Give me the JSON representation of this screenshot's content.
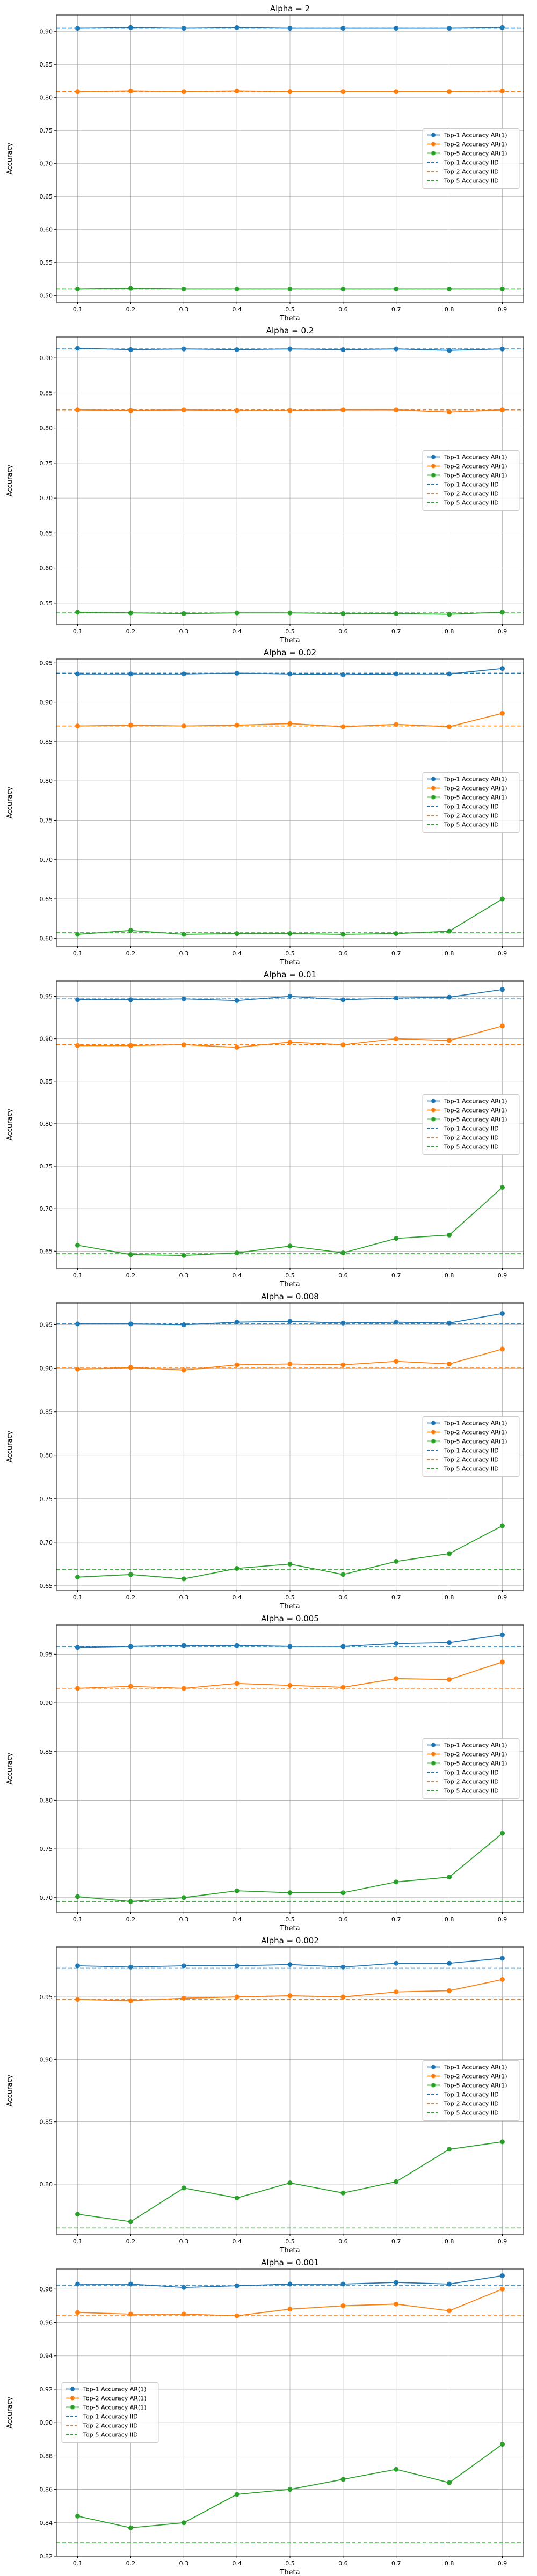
{
  "chart_data": [
    {
      "type": "line",
      "title": "Alpha = 2",
      "xlabel": "Theta",
      "ylabel": "Accuracy",
      "x": [
        0.1,
        0.2,
        0.3,
        0.4,
        0.5,
        0.6,
        0.7,
        0.8,
        0.9
      ],
      "xticks": [
        "0.1",
        "0.2",
        "0.3",
        "0.4",
        "0.5",
        "0.6",
        "0.7",
        "0.8",
        "0.9"
      ],
      "ylim": [
        0.49,
        0.925
      ],
      "yticks": [
        0.5,
        0.55,
        0.6,
        0.65,
        0.7,
        0.75,
        0.8,
        0.85,
        0.9
      ],
      "yticklabels": [
        "0.50",
        "0.55",
        "0.60",
        "0.65",
        "0.70",
        "0.75",
        "0.80",
        "0.85",
        "0.90"
      ],
      "legend_loc": "center right",
      "grid": true,
      "series": [
        {
          "name": "Top-1 Accuracy AR(1)",
          "color": "#1f77b4",
          "style": "solid-marker",
          "values": [
            0.905,
            0.906,
            0.905,
            0.906,
            0.905,
            0.905,
            0.905,
            0.905,
            0.906
          ]
        },
        {
          "name": "Top-2 Accuracy AR(1)",
          "color": "#ff7f0e",
          "style": "solid-marker",
          "values": [
            0.809,
            0.81,
            0.809,
            0.81,
            0.809,
            0.809,
            0.809,
            0.809,
            0.81
          ]
        },
        {
          "name": "Top-5 Accuracy AR(1)",
          "color": "#2ca02c",
          "style": "solid-marker",
          "values": [
            0.51,
            0.511,
            0.51,
            0.51,
            0.51,
            0.51,
            0.51,
            0.51,
            0.51
          ]
        },
        {
          "name": "Top-1 Accuracy IID",
          "color": "#1f77b4",
          "style": "dashed",
          "value": 0.905
        },
        {
          "name": "Top-2 Accuracy IID",
          "color": "#ff7f0e",
          "style": "dashed",
          "value": 0.809
        },
        {
          "name": "Top-5 Accuracy IID",
          "color": "#2ca02c",
          "style": "dashed",
          "value": 0.51
        }
      ]
    },
    {
      "type": "line",
      "title": "Alpha = 0.2",
      "xlabel": "Theta",
      "ylabel": "Accuracy",
      "x": [
        0.1,
        0.2,
        0.3,
        0.4,
        0.5,
        0.6,
        0.7,
        0.8,
        0.9
      ],
      "xticks": [
        "0.1",
        "0.2",
        "0.3",
        "0.4",
        "0.5",
        "0.6",
        "0.7",
        "0.8",
        "0.9"
      ],
      "ylim": [
        0.52,
        0.93
      ],
      "yticks": [
        0.55,
        0.6,
        0.65,
        0.7,
        0.75,
        0.8,
        0.85,
        0.9
      ],
      "yticklabels": [
        "0.55",
        "0.60",
        "0.65",
        "0.70",
        "0.75",
        "0.80",
        "0.85",
        "0.90"
      ],
      "legend_loc": "center right",
      "grid": true,
      "series": [
        {
          "name": "Top-1 Accuracy AR(1)",
          "color": "#1f77b4",
          "style": "solid-marker",
          "values": [
            0.914,
            0.912,
            0.913,
            0.912,
            0.913,
            0.912,
            0.913,
            0.911,
            0.913
          ]
        },
        {
          "name": "Top-2 Accuracy AR(1)",
          "color": "#ff7f0e",
          "style": "solid-marker",
          "values": [
            0.826,
            0.825,
            0.826,
            0.825,
            0.825,
            0.826,
            0.826,
            0.823,
            0.826
          ]
        },
        {
          "name": "Top-5 Accuracy AR(1)",
          "color": "#2ca02c",
          "style": "solid-marker",
          "values": [
            0.537,
            0.536,
            0.535,
            0.536,
            0.536,
            0.535,
            0.535,
            0.534,
            0.537
          ]
        },
        {
          "name": "Top-1 Accuracy IID",
          "color": "#1f77b4",
          "style": "dashed",
          "value": 0.913
        },
        {
          "name": "Top-2 Accuracy IID",
          "color": "#ff7f0e",
          "style": "dashed",
          "value": 0.826
        },
        {
          "name": "Top-5 Accuracy IID",
          "color": "#2ca02c",
          "style": "dashed",
          "value": 0.536
        }
      ]
    },
    {
      "type": "line",
      "title": "Alpha = 0.02",
      "xlabel": "Theta",
      "ylabel": "Accuracy",
      "x": [
        0.1,
        0.2,
        0.3,
        0.4,
        0.5,
        0.6,
        0.7,
        0.8,
        0.9
      ],
      "xticks": [
        "0.1",
        "0.2",
        "0.3",
        "0.4",
        "0.5",
        "0.6",
        "0.7",
        "0.8",
        "0.9"
      ],
      "ylim": [
        0.59,
        0.955
      ],
      "yticks": [
        0.6,
        0.65,
        0.7,
        0.75,
        0.8,
        0.85,
        0.9,
        0.95
      ],
      "yticklabels": [
        "0.60",
        "0.65",
        "0.70",
        "0.75",
        "0.80",
        "0.85",
        "0.90",
        "0.95"
      ],
      "legend_loc": "center right",
      "grid": true,
      "series": [
        {
          "name": "Top-1 Accuracy AR(1)",
          "color": "#1f77b4",
          "style": "solid-marker",
          "values": [
            0.936,
            0.936,
            0.936,
            0.937,
            0.936,
            0.935,
            0.936,
            0.936,
            0.943
          ]
        },
        {
          "name": "Top-2 Accuracy AR(1)",
          "color": "#ff7f0e",
          "style": "solid-marker",
          "values": [
            0.87,
            0.871,
            0.87,
            0.871,
            0.873,
            0.869,
            0.872,
            0.869,
            0.886
          ]
        },
        {
          "name": "Top-5 Accuracy AR(1)",
          "color": "#2ca02c",
          "style": "solid-marker",
          "values": [
            0.605,
            0.61,
            0.605,
            0.606,
            0.606,
            0.605,
            0.606,
            0.609,
            0.65
          ]
        },
        {
          "name": "Top-1 Accuracy IID",
          "color": "#1f77b4",
          "style": "dashed",
          "value": 0.937
        },
        {
          "name": "Top-2 Accuracy IID",
          "color": "#ff7f0e",
          "style": "dashed",
          "value": 0.87
        },
        {
          "name": "Top-5 Accuracy IID",
          "color": "#2ca02c",
          "style": "dashed",
          "value": 0.607
        }
      ]
    },
    {
      "type": "line",
      "title": "Alpha = 0.01",
      "xlabel": "Theta",
      "ylabel": "Accuracy",
      "x": [
        0.1,
        0.2,
        0.3,
        0.4,
        0.5,
        0.6,
        0.7,
        0.8,
        0.9
      ],
      "xticks": [
        "0.1",
        "0.2",
        "0.3",
        "0.4",
        "0.5",
        "0.6",
        "0.7",
        "0.8",
        "0.9"
      ],
      "ylim": [
        0.63,
        0.968
      ],
      "yticks": [
        0.65,
        0.7,
        0.75,
        0.8,
        0.85,
        0.9,
        0.95
      ],
      "yticklabels": [
        "0.65",
        "0.70",
        "0.75",
        "0.80",
        "0.85",
        "0.90",
        "0.95"
      ],
      "legend_loc": "center right",
      "grid": true,
      "series": [
        {
          "name": "Top-1 Accuracy AR(1)",
          "color": "#1f77b4",
          "style": "solid-marker",
          "values": [
            0.946,
            0.946,
            0.947,
            0.945,
            0.95,
            0.946,
            0.948,
            0.949,
            0.958
          ]
        },
        {
          "name": "Top-2 Accuracy AR(1)",
          "color": "#ff7f0e",
          "style": "solid-marker",
          "values": [
            0.892,
            0.892,
            0.893,
            0.89,
            0.896,
            0.893,
            0.9,
            0.898,
            0.915
          ]
        },
        {
          "name": "Top-5 Accuracy AR(1)",
          "color": "#2ca02c",
          "style": "solid-marker",
          "values": [
            0.657,
            0.646,
            0.645,
            0.648,
            0.656,
            0.648,
            0.665,
            0.669,
            0.725
          ]
        },
        {
          "name": "Top-1 Accuracy IID",
          "color": "#1f77b4",
          "style": "dashed",
          "value": 0.947
        },
        {
          "name": "Top-2 Accuracy IID",
          "color": "#ff7f0e",
          "style": "dashed",
          "value": 0.893
        },
        {
          "name": "Top-5 Accuracy IID",
          "color": "#2ca02c",
          "style": "dashed",
          "value": 0.647
        }
      ]
    },
    {
      "type": "line",
      "title": "Alpha = 0.008",
      "xlabel": "Theta",
      "ylabel": "Accuracy",
      "x": [
        0.1,
        0.2,
        0.3,
        0.4,
        0.5,
        0.6,
        0.7,
        0.8,
        0.9
      ],
      "xticks": [
        "0.1",
        "0.2",
        "0.3",
        "0.4",
        "0.5",
        "0.6",
        "0.7",
        "0.8",
        "0.9"
      ],
      "ylim": [
        0.645,
        0.975
      ],
      "yticks": [
        0.65,
        0.7,
        0.75,
        0.8,
        0.85,
        0.9,
        0.95
      ],
      "yticklabels": [
        "0.65",
        "0.70",
        "0.75",
        "0.80",
        "0.85",
        "0.90",
        "0.95"
      ],
      "legend_loc": "center right",
      "grid": true,
      "series": [
        {
          "name": "Top-1 Accuracy AR(1)",
          "color": "#1f77b4",
          "style": "solid-marker",
          "values": [
            0.951,
            0.951,
            0.95,
            0.953,
            0.954,
            0.952,
            0.953,
            0.952,
            0.963
          ]
        },
        {
          "name": "Top-2 Accuracy AR(1)",
          "color": "#ff7f0e",
          "style": "solid-marker",
          "values": [
            0.899,
            0.901,
            0.898,
            0.904,
            0.905,
            0.904,
            0.908,
            0.905,
            0.922
          ]
        },
        {
          "name": "Top-5 Accuracy AR(1)",
          "color": "#2ca02c",
          "style": "solid-marker",
          "values": [
            0.66,
            0.663,
            0.658,
            0.67,
            0.675,
            0.663,
            0.678,
            0.687,
            0.719
          ]
        },
        {
          "name": "Top-1 Accuracy IID",
          "color": "#1f77b4",
          "style": "dashed",
          "value": 0.951
        },
        {
          "name": "Top-2 Accuracy IID",
          "color": "#ff7f0e",
          "style": "dashed",
          "value": 0.901
        },
        {
          "name": "Top-5 Accuracy IID",
          "color": "#2ca02c",
          "style": "dashed",
          "value": 0.669
        }
      ]
    },
    {
      "type": "line",
      "title": "Alpha = 0.005",
      "xlabel": "Theta",
      "ylabel": "Accuracy",
      "x": [
        0.1,
        0.2,
        0.3,
        0.4,
        0.5,
        0.6,
        0.7,
        0.8,
        0.9
      ],
      "xticks": [
        "0.1",
        "0.2",
        "0.3",
        "0.4",
        "0.5",
        "0.6",
        "0.7",
        "0.8",
        "0.9"
      ],
      "ylim": [
        0.685,
        0.98
      ],
      "yticks": [
        0.7,
        0.75,
        0.8,
        0.85,
        0.9,
        0.95
      ],
      "yticklabels": [
        "0.70",
        "0.75",
        "0.80",
        "0.85",
        "0.90",
        "0.95"
      ],
      "legend_loc": "center right",
      "grid": true,
      "series": [
        {
          "name": "Top-1 Accuracy AR(1)",
          "color": "#1f77b4",
          "style": "solid-marker",
          "values": [
            0.957,
            0.958,
            0.959,
            0.959,
            0.958,
            0.958,
            0.961,
            0.962,
            0.97
          ]
        },
        {
          "name": "Top-2 Accuracy AR(1)",
          "color": "#ff7f0e",
          "style": "solid-marker",
          "values": [
            0.915,
            0.917,
            0.915,
            0.92,
            0.918,
            0.916,
            0.925,
            0.924,
            0.942
          ]
        },
        {
          "name": "Top-5 Accuracy AR(1)",
          "color": "#2ca02c",
          "style": "solid-marker",
          "values": [
            0.701,
            0.696,
            0.7,
            0.707,
            0.705,
            0.705,
            0.716,
            0.721,
            0.766
          ]
        },
        {
          "name": "Top-1 Accuracy IID",
          "color": "#1f77b4",
          "style": "dashed",
          "value": 0.958
        },
        {
          "name": "Top-2 Accuracy IID",
          "color": "#ff7f0e",
          "style": "dashed",
          "value": 0.915
        },
        {
          "name": "Top-5 Accuracy IID",
          "color": "#2ca02c",
          "style": "dashed",
          "value": 0.696
        }
      ]
    },
    {
      "type": "line",
      "title": "Alpha = 0.002",
      "xlabel": "Theta",
      "ylabel": "Accuracy",
      "x": [
        0.1,
        0.2,
        0.3,
        0.4,
        0.5,
        0.6,
        0.7,
        0.8,
        0.9
      ],
      "xticks": [
        "0.1",
        "0.2",
        "0.3",
        "0.4",
        "0.5",
        "0.6",
        "0.7",
        "0.8",
        "0.9"
      ],
      "ylim": [
        0.76,
        0.99
      ],
      "yticks": [
        0.8,
        0.85,
        0.9,
        0.95
      ],
      "yticklabels": [
        "0.80",
        "0.85",
        "0.90",
        "0.95"
      ],
      "legend_loc": "center right",
      "grid": true,
      "series": [
        {
          "name": "Top-1 Accuracy AR(1)",
          "color": "#1f77b4",
          "style": "solid-marker",
          "values": [
            0.975,
            0.974,
            0.975,
            0.975,
            0.976,
            0.974,
            0.977,
            0.977,
            0.981
          ]
        },
        {
          "name": "Top-2 Accuracy AR(1)",
          "color": "#ff7f0e",
          "style": "solid-marker",
          "values": [
            0.948,
            0.947,
            0.949,
            0.95,
            0.951,
            0.95,
            0.954,
            0.955,
            0.964
          ]
        },
        {
          "name": "Top-5 Accuracy AR(1)",
          "color": "#2ca02c",
          "style": "solid-marker",
          "values": [
            0.776,
            0.77,
            0.797,
            0.789,
            0.801,
            0.793,
            0.802,
            0.828,
            0.834
          ]
        },
        {
          "name": "Top-1 Accuracy IID",
          "color": "#1f77b4",
          "style": "dashed",
          "value": 0.973
        },
        {
          "name": "Top-2 Accuracy IID",
          "color": "#ff7f0e",
          "style": "dashed",
          "value": 0.948
        },
        {
          "name": "Top-5 Accuracy IID",
          "color": "#2ca02c",
          "style": "dashed",
          "value": 0.765
        }
      ]
    },
    {
      "type": "line",
      "title": "Alpha = 0.001",
      "xlabel": "Theta",
      "ylabel": "Accuracy",
      "x": [
        0.1,
        0.2,
        0.3,
        0.4,
        0.5,
        0.6,
        0.7,
        0.8,
        0.9
      ],
      "xticks": [
        "0.1",
        "0.2",
        "0.3",
        "0.4",
        "0.5",
        "0.6",
        "0.7",
        "0.8",
        "0.9"
      ],
      "ylim": [
        0.82,
        0.992
      ],
      "yticks": [
        0.82,
        0.84,
        0.86,
        0.88,
        0.9,
        0.92,
        0.94,
        0.96,
        0.98
      ],
      "yticklabels": [
        "0.82",
        "0.84",
        "0.86",
        "0.88",
        "0.90",
        "0.92",
        "0.94",
        "0.96",
        "0.98"
      ],
      "legend_loc": "center left",
      "grid": true,
      "series": [
        {
          "name": "Top-1 Accuracy AR(1)",
          "color": "#1f77b4",
          "style": "solid-marker",
          "values": [
            0.983,
            0.983,
            0.981,
            0.982,
            0.983,
            0.983,
            0.984,
            0.983,
            0.988
          ]
        },
        {
          "name": "Top-2 Accuracy AR(1)",
          "color": "#ff7f0e",
          "style": "solid-marker",
          "values": [
            0.966,
            0.965,
            0.965,
            0.964,
            0.968,
            0.97,
            0.971,
            0.967,
            0.98
          ]
        },
        {
          "name": "Top-5 Accuracy AR(1)",
          "color": "#2ca02c",
          "style": "solid-marker",
          "values": [
            0.844,
            0.837,
            0.84,
            0.857,
            0.86,
            0.866,
            0.872,
            0.864,
            0.887
          ]
        },
        {
          "name": "Top-1 Accuracy IID",
          "color": "#1f77b4",
          "style": "dashed",
          "value": 0.982
        },
        {
          "name": "Top-2 Accuracy IID",
          "color": "#ff7f0e",
          "style": "dashed",
          "value": 0.964
        },
        {
          "name": "Top-5 Accuracy IID",
          "color": "#2ca02c",
          "style": "dashed",
          "value": 0.828
        }
      ]
    }
  ]
}
